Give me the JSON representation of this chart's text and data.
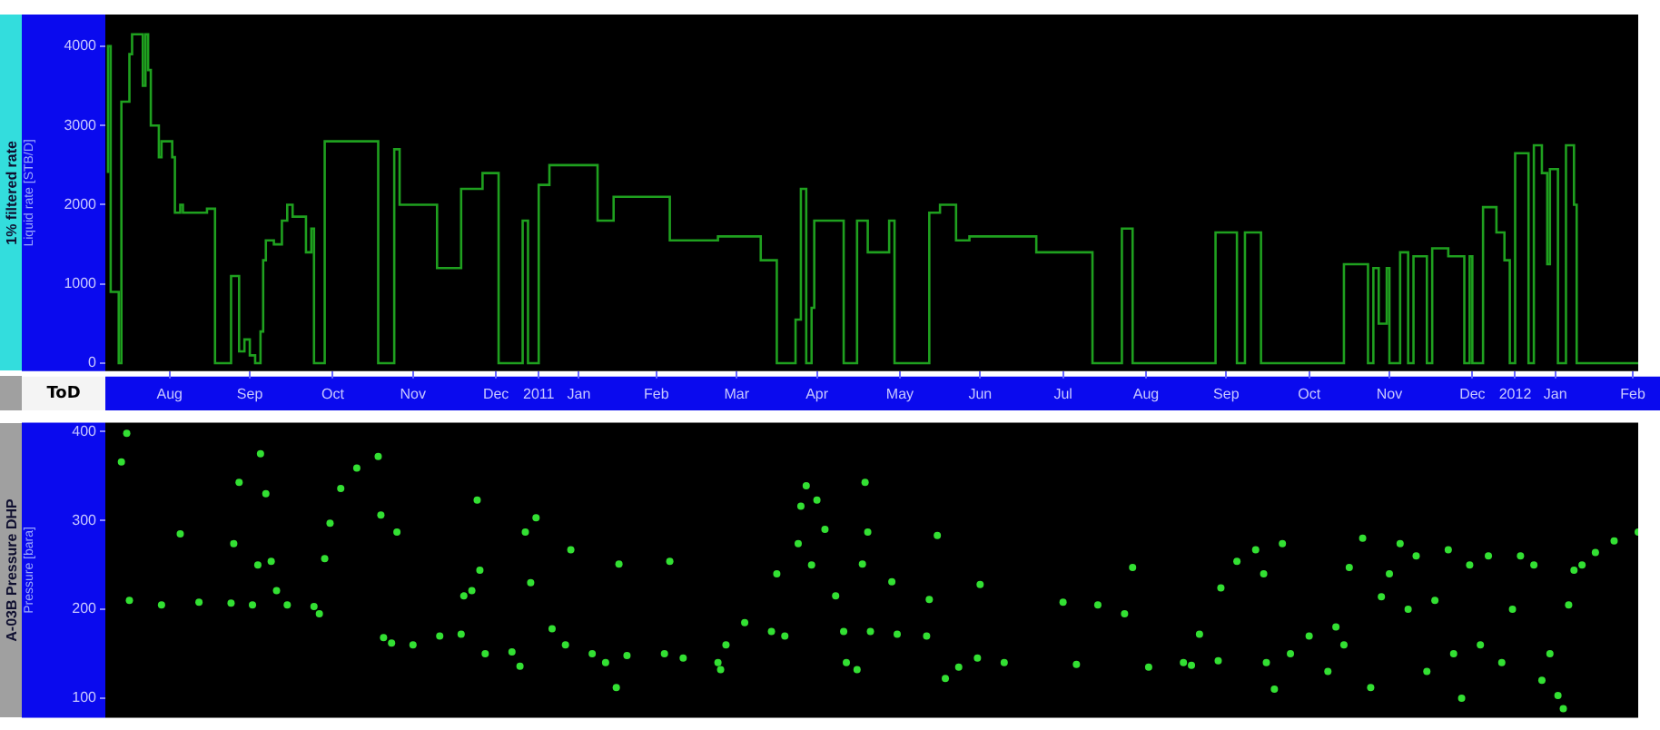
{
  "chart_data": [
    {
      "type": "step",
      "title": "1% filtered rate",
      "ylabel": "Liquid rate [STB/D]",
      "xlabel": "ToD",
      "color": "#1fa01f",
      "x": [
        "2010-07-24",
        "2010-07-25",
        "2010-07-28",
        "2010-07-29",
        "2010-08-01",
        "2010-08-02",
        "2010-08-06",
        "2010-08-07",
        "2010-08-08",
        "2010-08-09",
        "2010-08-12",
        "2010-08-13",
        "2010-08-17",
        "2010-08-18",
        "2010-08-20",
        "2010-08-21",
        "2010-08-30",
        "2010-09-02",
        "2010-09-08",
        "2010-09-11",
        "2010-09-13",
        "2010-09-15",
        "2010-09-17",
        "2010-09-19",
        "2010-09-20",
        "2010-09-21",
        "2010-09-24",
        "2010-09-27",
        "2010-09-29",
        "2010-10-01",
        "2010-10-06",
        "2010-10-08",
        "2010-10-09",
        "2010-10-13",
        "2010-11-02",
        "2010-11-08",
        "2010-11-10",
        "2010-11-24",
        "2010-12-03",
        "2010-12-11",
        "2010-12-17",
        "2010-12-26",
        "2010-12-28",
        "2011-01-01",
        "2011-01-05",
        "2011-01-23",
        "2011-01-29",
        "2011-02-19",
        "2011-03-09",
        "2011-03-25",
        "2011-03-31",
        "2011-04-07",
        "2011-04-09",
        "2011-04-11",
        "2011-04-13",
        "2011-04-14",
        "2011-04-25",
        "2011-04-30",
        "2011-05-04",
        "2011-05-12",
        "2011-05-14",
        "2011-05-27",
        "2011-05-31",
        "2011-06-06",
        "2011-06-11",
        "2011-07-06",
        "2011-07-27",
        "2011-08-07",
        "2011-08-11",
        "2011-09-11",
        "2011-09-19",
        "2011-09-22",
        "2011-09-28",
        "2011-10-29",
        "2011-11-07",
        "2011-11-09",
        "2011-11-11",
        "2011-11-14",
        "2011-11-15",
        "2011-11-19",
        "2011-11-22",
        "2011-11-24",
        "2011-11-29",
        "2011-12-01",
        "2011-12-07",
        "2011-12-13",
        "2011-12-15",
        "2011-12-16",
        "2011-12-20",
        "2011-12-25",
        "2011-12-28",
        "2011-12-30",
        "2012-01-01",
        "2012-01-06",
        "2012-01-08",
        "2012-01-11",
        "2012-01-13",
        "2012-01-14",
        "2012-01-17",
        "2012-01-20",
        "2012-01-23",
        "2012-01-24",
        "2012-01-25",
        "2012-02-16"
      ],
      "values": [
        2400,
        4000,
        900,
        0,
        3300,
        3900,
        4150,
        3500,
        4150,
        3700,
        3000,
        2600,
        2800,
        2600,
        1900,
        2000,
        1900,
        1950,
        0,
        1100,
        150,
        300,
        100,
        0,
        400,
        1300,
        1550,
        1500,
        1800,
        2000,
        1850,
        1400,
        1700,
        0,
        2800,
        0,
        2700,
        2000,
        1200,
        2200,
        2400,
        0,
        1800,
        0,
        2250,
        2500,
        1800,
        2100,
        1550,
        1600,
        1300,
        0,
        550,
        2200,
        0,
        700,
        1800,
        0,
        1800,
        1400,
        1800,
        0,
        1900,
        2000,
        1550,
        1600,
        1400,
        0,
        1700,
        0,
        1650,
        0,
        1650,
        0,
        1250,
        0,
        1200,
        500,
        1200,
        0,
        1400,
        0,
        1350,
        0,
        1450,
        1350,
        0,
        1350,
        0,
        1970,
        1650,
        1300,
        0,
        2650,
        0,
        2750,
        2400,
        1250,
        2450,
        0,
        2750,
        2000,
        0,
        0
      ],
      "xlim": [
        "2010-07-23",
        "2012-02-16"
      ],
      "xticks": [
        {
          "value": "2010-08-16",
          "label": "Aug"
        },
        {
          "value": "2010-09-15",
          "label": "Sep"
        },
        {
          "value": "2010-10-16",
          "label": "Oct"
        },
        {
          "value": "2010-11-15",
          "label": "Nov"
        },
        {
          "value": "2010-12-16",
          "label": "Dec"
        },
        {
          "value": "2011-01-01",
          "label": "2011"
        },
        {
          "value": "2011-01-16",
          "label": "Jan"
        },
        {
          "value": "2011-02-14",
          "label": "Feb"
        },
        {
          "value": "2011-03-16",
          "label": "Mar"
        },
        {
          "value": "2011-04-15",
          "label": "Apr"
        },
        {
          "value": "2011-05-16",
          "label": "May"
        },
        {
          "value": "2011-06-15",
          "label": "Jun"
        },
        {
          "value": "2011-07-16",
          "label": "Jul"
        },
        {
          "value": "2011-08-16",
          "label": "Aug"
        },
        {
          "value": "2011-09-15",
          "label": "Sep"
        },
        {
          "value": "2011-10-16",
          "label": "Oct"
        },
        {
          "value": "2011-11-15",
          "label": "Nov"
        },
        {
          "value": "2011-12-16",
          "label": "Dec"
        },
        {
          "value": "2012-01-01",
          "label": "2012"
        },
        {
          "value": "2012-01-16",
          "label": "Jan"
        },
        {
          "value": "2012-02-14",
          "label": "Feb"
        }
      ],
      "ylim": [
        -100,
        4400
      ],
      "yticks": [
        0,
        1000,
        2000,
        3000,
        4000
      ]
    },
    {
      "type": "scatter",
      "title": "A-03B Pressure DHP",
      "ylabel": "Pressure [bara]",
      "color": "#33e033",
      "marker": "circle",
      "tick_labels": "y",
      "x": [
        "2010-07-29",
        "2010-07-31",
        "2010-08-01",
        "2010-08-13",
        "2010-08-20",
        "2010-08-27",
        "2010-09-08",
        "2010-09-09",
        "2010-09-11",
        "2010-09-16",
        "2010-09-18",
        "2010-09-19",
        "2010-09-21",
        "2010-09-23",
        "2010-09-25",
        "2010-09-29",
        "2010-10-09",
        "2010-10-11",
        "2010-10-13",
        "2010-10-15",
        "2010-10-19",
        "2010-10-25",
        "2010-11-02",
        "2010-11-03",
        "2010-11-04",
        "2010-11-07",
        "2010-11-09",
        "2010-11-15",
        "2010-11-25",
        "2010-12-03",
        "2010-12-04",
        "2010-12-07",
        "2010-12-09",
        "2010-12-10",
        "2010-12-12",
        "2010-12-22",
        "2010-12-25",
        "2010-12-27",
        "2010-12-29",
        "2010-12-31",
        "2011-01-06",
        "2011-01-11",
        "2011-01-13",
        "2011-01-21",
        "2011-01-26",
        "2011-01-30",
        "2011-01-31",
        "2011-02-03",
        "2011-02-17",
        "2011-02-19",
        "2011-02-24",
        "2011-03-09",
        "2011-03-10",
        "2011-03-12",
        "2011-03-19",
        "2011-03-29",
        "2011-03-31",
        "2011-04-03",
        "2011-04-08",
        "2011-04-09",
        "2011-04-11",
        "2011-04-13",
        "2011-04-15",
        "2011-04-18",
        "2011-04-22",
        "2011-04-25",
        "2011-04-26",
        "2011-04-30",
        "2011-05-02",
        "2011-05-03",
        "2011-05-04",
        "2011-05-05",
        "2011-05-13",
        "2011-05-15",
        "2011-05-26",
        "2011-05-27",
        "2011-05-30",
        "2011-06-02",
        "2011-06-07",
        "2011-06-14",
        "2011-06-15",
        "2011-06-24",
        "2011-07-16",
        "2011-07-21",
        "2011-07-29",
        "2011-08-08",
        "2011-08-11",
        "2011-08-17",
        "2011-08-30",
        "2011-09-02",
        "2011-09-05",
        "2011-09-12",
        "2011-09-13",
        "2011-09-19",
        "2011-09-26",
        "2011-09-29",
        "2011-09-30",
        "2011-10-03",
        "2011-10-06",
        "2011-10-09",
        "2011-10-16",
        "2011-10-23",
        "2011-10-26",
        "2011-10-29",
        "2011-10-31",
        "2011-11-05",
        "2011-11-08",
        "2011-11-12",
        "2011-11-15",
        "2011-11-19",
        "2011-11-22",
        "2011-11-25",
        "2011-11-29",
        "2011-12-02",
        "2011-12-07",
        "2011-12-09",
        "2011-12-12",
        "2011-12-15",
        "2011-12-19",
        "2011-12-22",
        "2011-12-27",
        "2011-12-31",
        "2012-01-03",
        "2012-01-08",
        "2012-01-11",
        "2012-01-14",
        "2012-01-17",
        "2012-01-19",
        "2012-01-21",
        "2012-01-23",
        "2012-01-26",
        "2012-01-31",
        "2012-02-07",
        "2012-02-16"
      ],
      "values": [
        366,
        398,
        210,
        205,
        285,
        208,
        207,
        274,
        343,
        205,
        250,
        375,
        330,
        254,
        221,
        205,
        203,
        195,
        257,
        297,
        336,
        359,
        372,
        306,
        168,
        162,
        287,
        160,
        170,
        172,
        215,
        221,
        323,
        244,
        150,
        152,
        136,
        287,
        230,
        303,
        178,
        160,
        267,
        150,
        140,
        112,
        251,
        148,
        150,
        254,
        145,
        140,
        132,
        160,
        185,
        175,
        240,
        170,
        274,
        316,
        339,
        250,
        323,
        290,
        215,
        175,
        140,
        132,
        251,
        343,
        287,
        175,
        231,
        172,
        170,
        211,
        283,
        122,
        135,
        145,
        228,
        140,
        208,
        138,
        205,
        195,
        247,
        135,
        140,
        137,
        172,
        142,
        224,
        254,
        267,
        240,
        140,
        110,
        274,
        150,
        170,
        130,
        180,
        160,
        247,
        280,
        112,
        214,
        240,
        274,
        200,
        260,
        130,
        210,
        267,
        150,
        100,
        250,
        160,
        260,
        140,
        200,
        260,
        250,
        120,
        150,
        103,
        88,
        205,
        244,
        250,
        264,
        277,
        287
      ],
      "xlim": [
        "2010-07-23",
        "2012-02-16"
      ],
      "ylim": [
        78,
        410
      ],
      "yticks": [
        100,
        200,
        300,
        400
      ]
    }
  ]
}
